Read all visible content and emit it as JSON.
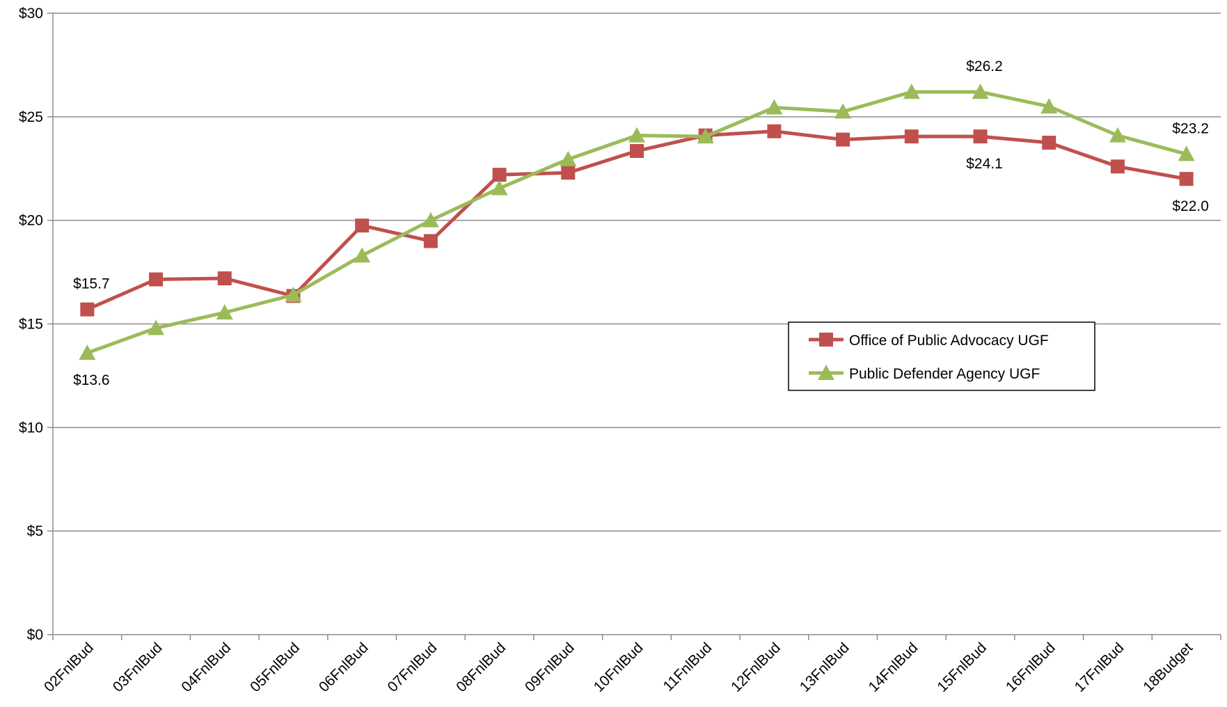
{
  "chart_data": {
    "type": "line",
    "title": "",
    "xlabel": "",
    "ylabel": "",
    "ylim": [
      0,
      30
    ],
    "yticks": [
      0,
      5,
      10,
      15,
      20,
      25,
      30
    ],
    "ytick_labels": [
      "$0",
      "$5",
      "$10",
      "$15",
      "$20",
      "$25",
      "$30"
    ],
    "grid": "horizontal",
    "legend_position": "center-right",
    "categories": [
      "02FnlBud",
      "03FnlBud",
      "04FnlBud",
      "05FnlBud",
      "06FnlBud",
      "07FnlBud",
      "08FnlBud",
      "09FnlBud",
      "10FnlBud",
      "11FnlBud",
      "12FnlBud",
      "13FnlBud",
      "14FnlBud",
      "15FnlBud",
      "16FnlBud",
      "17FnlBud",
      "18Budget"
    ],
    "series": [
      {
        "name": "Office of Public Advocacy UGF",
        "color": "#C0504D",
        "marker": "square",
        "values": [
          15.7,
          17.15,
          17.2,
          16.35,
          19.75,
          19.0,
          22.2,
          22.3,
          23.35,
          24.1,
          24.3,
          23.9,
          24.05,
          24.05,
          23.75,
          22.6,
          22.0
        ]
      },
      {
        "name": "Public Defender Agency UGF",
        "color": "#9BBB59",
        "marker": "triangle",
        "values": [
          13.6,
          14.8,
          15.55,
          16.4,
          18.3,
          20.0,
          21.55,
          22.95,
          24.1,
          24.05,
          25.45,
          25.25,
          26.2,
          26.2,
          25.5,
          24.1,
          23.2
        ]
      }
    ],
    "annotations": [
      {
        "series": 0,
        "index": 0,
        "text": "$15.7",
        "position": "above"
      },
      {
        "series": 1,
        "index": 0,
        "text": "$13.6",
        "position": "below"
      },
      {
        "series": 1,
        "index": 13,
        "text": "$26.2",
        "position": "above"
      },
      {
        "series": 0,
        "index": 13,
        "text": "$24.1",
        "position": "below"
      },
      {
        "series": 1,
        "index": 16,
        "text": "$23.2",
        "position": "above"
      },
      {
        "series": 0,
        "index": 16,
        "text": "$22.0",
        "position": "below"
      }
    ]
  }
}
